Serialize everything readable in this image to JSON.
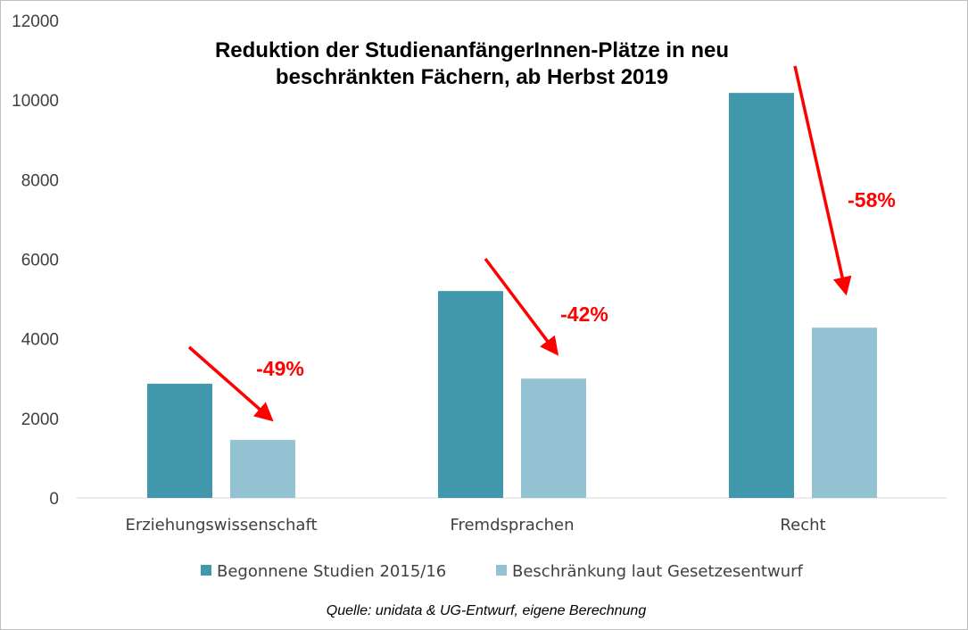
{
  "chart_data": {
    "type": "bar",
    "title_line1": "Reduktion der StudienanfängerInnen-Plätze in neu",
    "title_line2": "beschränkten Fächern, ab Herbst 2019",
    "categories": [
      "Erziehungswissenschaft",
      "Fremdsprachen",
      "Recht"
    ],
    "series": [
      {
        "name": "Begonnene Studien 2015/16",
        "values": [
          2870,
          5200,
          10180
        ],
        "color": "#4198ac"
      },
      {
        "name": "Beschränkung laut Gesetzesentwurf",
        "values": [
          1460,
          3000,
          4280
        ],
        "color": "#93c3d3"
      }
    ],
    "ylim": [
      0,
      12000
    ],
    "yticks": [
      0,
      2000,
      4000,
      6000,
      8000,
      10000,
      12000
    ],
    "annotations": [
      {
        "category": "Erziehungswissenschaft",
        "text": "-49%"
      },
      {
        "category": "Fremdsprachen",
        "text": "-42%"
      },
      {
        "category": "Recht",
        "text": "-58%"
      }
    ],
    "annotation_color": "#ff0000",
    "source": "Quelle: unidata & UG-Entwurf, eigene Berechnung",
    "legend_position": "bottom",
    "grid": false
  }
}
